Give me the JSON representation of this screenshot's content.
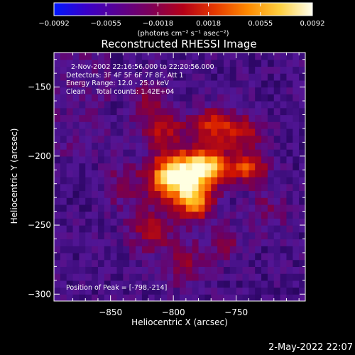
{
  "chart_data": {
    "type": "heatmap",
    "title": "Reconstructed RHESSI Image",
    "xlabel": "Heliocentric X (arcsec)",
    "ylabel": "Heliocentric Y (arcsec)",
    "xlim": [
      -895,
      -695
    ],
    "ylim": [
      -305,
      -125
    ],
    "x_ticks": [
      -850,
      -800,
      -750
    ],
    "x_tick_labels": [
      "−850",
      "−800",
      "−750"
    ],
    "y_ticks": [
      -150,
      -200,
      -250,
      -300
    ],
    "y_tick_labels": [
      "−150",
      "−200",
      "−250",
      "−300"
    ],
    "colorbar": {
      "range": [
        -0.0092,
        0.0092
      ],
      "ticks": [
        -0.0092,
        -0.0055,
        -0.0018,
        0.0018,
        0.0055,
        0.0092
      ],
      "tick_labels": [
        "−0.0092",
        "−0.0055",
        "−0.0018",
        "0.0018",
        "0.0055",
        "0.0092"
      ],
      "unit_label": "(photons cm⁻² s⁻¹ asec⁻²)",
      "colors": [
        "#0018ff",
        "#3a00c8",
        "#5a0090",
        "#7d0058",
        "#b50018",
        "#e63a00",
        "#ff8a00",
        "#ffd040",
        "#fffff0"
      ]
    },
    "annotations": [
      "2-Nov-2002 22:16:56.000 to 22:20:56.000",
      "Detectors: 3F 4F 5F 6F 7F 8F, Att 1",
      "Energy Range: 12.0 - 25.0 keV",
      "Clean     Total counts: 1.42E+04"
    ],
    "peak_label": "Position of Peak = [-798,-214]",
    "peak": [
      -798,
      -214
    ],
    "sources": [
      {
        "x": -798,
        "y": -214,
        "sx": 14,
        "sy": 11,
        "amp": 1.0
      },
      {
        "x": -772,
        "y": -207,
        "sx": 12,
        "sy": 9,
        "amp": 0.7
      },
      {
        "x": -783,
        "y": -232,
        "sx": 10,
        "sy": 10,
        "amp": 0.6
      },
      {
        "x": -740,
        "y": -208,
        "sx": 10,
        "sy": 8,
        "amp": 0.5
      },
      {
        "x": -770,
        "y": -178,
        "sx": 12,
        "sy": 10,
        "amp": 0.4
      },
      {
        "x": -745,
        "y": -182,
        "sx": 12,
        "sy": 8,
        "amp": 0.35
      },
      {
        "x": -808,
        "y": -180,
        "sx": 12,
        "sy": 10,
        "amp": 0.35
      },
      {
        "x": -818,
        "y": -253,
        "sx": 12,
        "sy": 12,
        "amp": 0.3
      },
      {
        "x": -790,
        "y": -278,
        "sx": 10,
        "sy": 12,
        "amp": 0.25
      },
      {
        "x": -760,
        "y": -262,
        "sx": 10,
        "sy": 10,
        "amp": 0.22
      },
      {
        "x": -840,
        "y": -220,
        "sx": 10,
        "sy": 12,
        "amp": 0.2
      },
      {
        "x": -822,
        "y": -158,
        "sx": 10,
        "sy": 10,
        "amp": 0.2
      },
      {
        "x": -725,
        "y": -240,
        "sx": 10,
        "sy": 10,
        "amp": 0.18
      }
    ]
  },
  "footer": {
    "date_stamp": "2-May-2022 22:07"
  }
}
